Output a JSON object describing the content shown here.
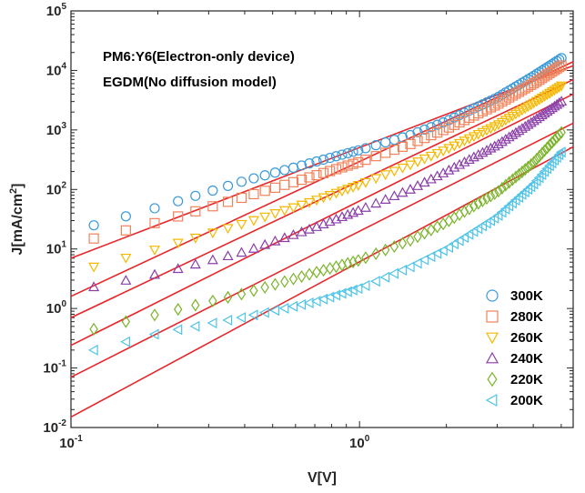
{
  "chart_data": {
    "type": "scatter",
    "title": "",
    "annotations": [
      "PM6:Y6(Electron-only device)",
      "EGDM(No diffusion model)"
    ],
    "xlabel": "V[V]",
    "ylabel": "J[mA/cm2]",
    "x_scale": "log",
    "y_scale": "log",
    "xlim": [
      0.1,
      5.5
    ],
    "ylim": [
      0.01,
      100000
    ],
    "x_ticks": [
      {
        "base": "10",
        "exp": "-1",
        "value": 0.1
      },
      {
        "base": "10",
        "exp": "0",
        "value": 1
      }
    ],
    "y_ticks": [
      {
        "base": "10",
        "exp": "-2",
        "value": 0.01
      },
      {
        "base": "10",
        "exp": "-1",
        "value": 0.1
      },
      {
        "base": "10",
        "exp": "0",
        "value": 1
      },
      {
        "base": "10",
        "exp": "1",
        "value": 10
      },
      {
        "base": "10",
        "exp": "2",
        "value": 100
      },
      {
        "base": "10",
        "exp": "3",
        "value": 1000
      },
      {
        "base": "10",
        "exp": "4",
        "value": 10000
      },
      {
        "base": "10",
        "exp": "5",
        "value": 100000
      }
    ],
    "grid": false,
    "legend_position": "bottom-right",
    "fit_color": "#e8262a",
    "series": [
      {
        "name": "300K",
        "marker": "circle",
        "color": "#3a9ad9",
        "j_start": 25,
        "knots": [
          [
            0.12,
            25
          ],
          [
            0.2,
            50
          ],
          [
            0.4,
            140
          ],
          [
            0.7,
            290
          ],
          [
            1.0,
            460
          ],
          [
            1.5,
            820
          ],
          [
            2.0,
            1400
          ],
          [
            3.0,
            3500
          ],
          [
            4.0,
            8000
          ],
          [
            5.0,
            16000
          ]
        ],
        "fit": [
          [
            0.1,
            7
          ],
          [
            5.5,
            12000
          ]
        ]
      },
      {
        "name": "280K",
        "marker": "square",
        "color": "#f0825a",
        "j_start": 15,
        "knots": [
          [
            0.12,
            15
          ],
          [
            0.2,
            28
          ],
          [
            0.4,
            75
          ],
          [
            0.7,
            170
          ],
          [
            1.0,
            290
          ],
          [
            1.5,
            580
          ],
          [
            2.0,
            1050
          ],
          [
            3.0,
            2700
          ],
          [
            4.0,
            6000
          ],
          [
            5.0,
            12000
          ]
        ],
        "fit": [
          [
            0.1,
            1.6
          ],
          [
            5.5,
            14000
          ]
        ]
      },
      {
        "name": "260K",
        "marker": "triangle-down",
        "color": "#f5b800",
        "j_start": 5,
        "knots": [
          [
            0.12,
            5
          ],
          [
            0.2,
            10
          ],
          [
            0.4,
            27
          ],
          [
            0.7,
            65
          ],
          [
            1.0,
            120
          ],
          [
            1.5,
            260
          ],
          [
            2.0,
            470
          ],
          [
            3.0,
            1200
          ],
          [
            4.0,
            2800
          ],
          [
            5.0,
            5500
          ]
        ],
        "fit": [
          [
            0.1,
            0.7
          ],
          [
            5.5,
            7000
          ]
        ]
      },
      {
        "name": "240K",
        "marker": "triangle-up",
        "color": "#8a3fa8",
        "j_start": 2.3,
        "knots": [
          [
            0.12,
            2.3
          ],
          [
            0.2,
            3.8
          ],
          [
            0.4,
            9
          ],
          [
            0.7,
            23
          ],
          [
            1.0,
            45
          ],
          [
            1.5,
            100
          ],
          [
            2.0,
            200
          ],
          [
            3.0,
            560
          ],
          [
            4.0,
            1400
          ],
          [
            5.0,
            3000
          ]
        ],
        "fit": [
          [
            0.1,
            0.24
          ],
          [
            5.5,
            4000
          ]
        ]
      },
      {
        "name": "220K",
        "marker": "diamond",
        "color": "#7ab32a",
        "j_start": 0.45,
        "knots": [
          [
            0.12,
            0.45
          ],
          [
            0.2,
            0.8
          ],
          [
            0.4,
            1.8
          ],
          [
            0.7,
            4
          ],
          [
            1.0,
            6.5
          ],
          [
            1.5,
            14
          ],
          [
            2.0,
            28
          ],
          [
            3.0,
            90
          ],
          [
            4.0,
            280
          ],
          [
            5.0,
            900
          ]
        ],
        "fit": [
          [
            0.1,
            0.07
          ],
          [
            5.5,
            1300
          ]
        ]
      },
      {
        "name": "200K",
        "marker": "triangle-left",
        "color": "#4fc3e8",
        "j_start": 0.2,
        "knots": [
          [
            0.12,
            0.2
          ],
          [
            0.2,
            0.38
          ],
          [
            0.4,
            0.72
          ],
          [
            0.7,
            1.3
          ],
          [
            1.0,
            2.2
          ],
          [
            1.5,
            5
          ],
          [
            2.0,
            10
          ],
          [
            3.0,
            35
          ],
          [
            4.0,
            120
          ],
          [
            5.0,
            420
          ]
        ],
        "fit": [
          [
            0.1,
            0.015
          ],
          [
            5.5,
            520
          ]
        ]
      }
    ]
  }
}
